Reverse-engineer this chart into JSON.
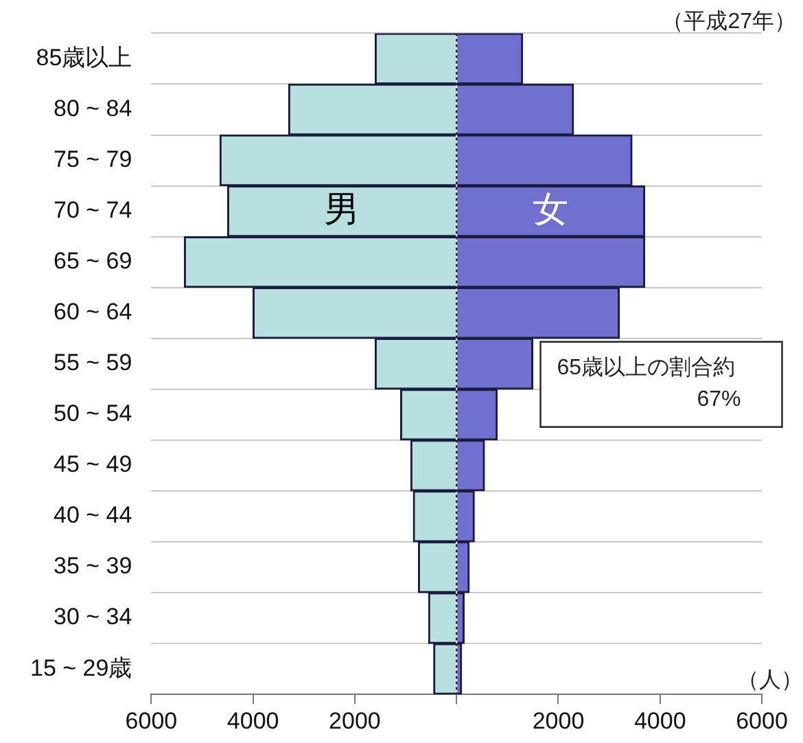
{
  "chart_data": {
    "type": "bar",
    "orientation": "horizontal",
    "stacked": true,
    "categories": [
      "85歳以上",
      "80 ~ 84",
      "75 ~ 79",
      "70 ~ 74",
      "65 ~ 69",
      "60 ~ 64",
      "55 ~ 59",
      "50 ~ 54",
      "45 ~ 49",
      "40 ~ 44",
      "35 ~ 39",
      "30 ~ 34",
      "15 ~ 29歳"
    ],
    "series": [
      {
        "name": "男",
        "color": "#b8e0e0",
        "values": [
          -1600,
          -3300,
          -4650,
          -4500,
          -5350,
          -4000,
          -1600,
          -1100,
          -900,
          -850,
          -750,
          -550,
          -450
        ]
      },
      {
        "name": "女",
        "color": "#7070d0",
        "values": [
          1300,
          2300,
          3450,
          3700,
          3700,
          3200,
          1500,
          800,
          550,
          350,
          250,
          150,
          100
        ]
      }
    ],
    "xlim": [
      -6000,
      6000
    ],
    "xticks": [
      {
        "value": -6000,
        "label": "6000"
      },
      {
        "value": -4000,
        "label": "4000"
      },
      {
        "value": -2000,
        "label": "2000"
      },
      {
        "value": 0,
        "label": null
      },
      2000,
      4000,
      6000
    ],
    "ref_lines": [
      {
        "axis": "x",
        "value": 0,
        "line_style": "dotted",
        "color": "#1c1c3c"
      }
    ],
    "grid": "y",
    "legend": false,
    "annotations": [
      "（平成27年）",
      "65歳以上の割合約67%",
      "（人）"
    ]
  }
}
